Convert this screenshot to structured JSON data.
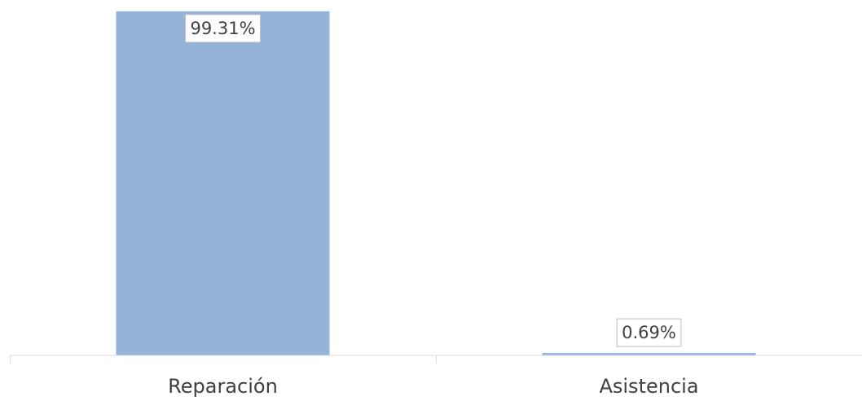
{
  "chart_data": {
    "type": "bar",
    "categories": [
      "Reparación",
      "Asistencia"
    ],
    "values": [
      99.31,
      0.69
    ],
    "data_labels": [
      "99.31%",
      "0.69%"
    ],
    "ylim": [
      0,
      100
    ],
    "grid": false,
    "legend": "none",
    "bar_color": "#95b3d7",
    "axis_color": "#d9d9d9",
    "text_color": "#404040"
  }
}
